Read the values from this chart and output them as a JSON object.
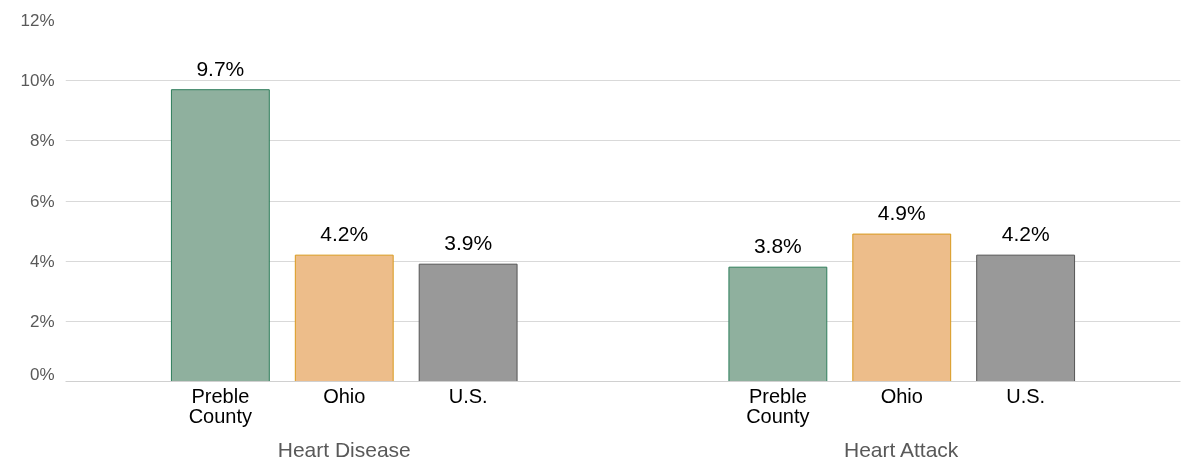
{
  "chart_data": {
    "type": "bar",
    "categories": [
      "Heart Disease",
      "Heart Attack"
    ],
    "series": [
      {
        "name": "Preble County",
        "color": "#8fb09e",
        "values": [
          9.7,
          3.8
        ],
        "value_labels": [
          "9.7%",
          "3.8%"
        ]
      },
      {
        "name": "Ohio",
        "color": "#edbd8a",
        "values": [
          4.2,
          4.9
        ],
        "value_labels": [
          "4.2%",
          "4.9%"
        ]
      },
      {
        "name": "U.S.",
        "color": "#999999",
        "values": [
          3.9,
          4.2
        ],
        "value_labels": [
          "3.9%",
          "4.2%"
        ]
      }
    ],
    "ylim": [
      0,
      12
    ],
    "yticks": [
      {
        "value": 0,
        "label": "0%"
      },
      {
        "value": 2,
        "label": "2%"
      },
      {
        "value": 4,
        "label": "4%"
      },
      {
        "value": 6,
        "label": "6%"
      },
      {
        "value": 8,
        "label": "8%"
      },
      {
        "value": 10,
        "label": "10%"
      },
      {
        "value": 12,
        "label": "12%"
      }
    ],
    "grid": "y"
  }
}
